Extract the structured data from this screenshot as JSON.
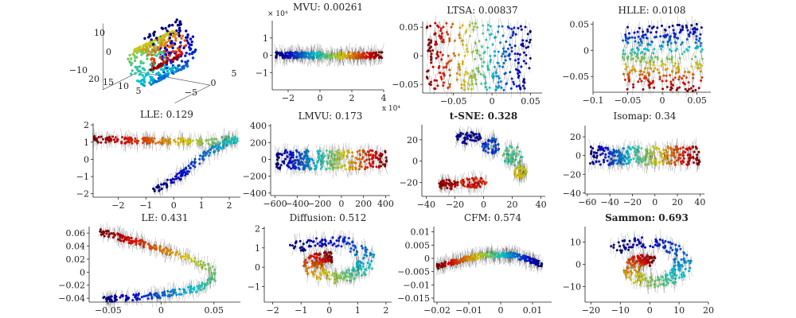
{
  "chart_data": [
    {
      "type": "scatter3d",
      "title": "",
      "panel": "original",
      "ticks": {
        "z": [
          "10",
          "0",
          "−10"
        ],
        "x": [
          "20",
          "15",
          "10",
          "5"
        ],
        "y": [
          "−5",
          "0",
          "5"
        ]
      },
      "colormap": "jet",
      "description": "Swiss roll, 3D"
    },
    {
      "type": "scatter",
      "title": "MVU: 0.00261",
      "title_bold": false,
      "xlim": [
        -30000,
        40000
      ],
      "ylim": [
        -20000,
        20000
      ],
      "xticks": [
        {
          "v": -20000,
          "label": "−2"
        },
        {
          "v": 0,
          "label": "0"
        },
        {
          "v": 20000,
          "label": "2"
        },
        {
          "v": 40000,
          "label": "4"
        }
      ],
      "yticks": [
        {
          "v": 10000,
          "label": "1"
        },
        {
          "v": 0,
          "label": "0"
        },
        {
          "v": -10000,
          "label": "−1"
        }
      ],
      "x_multiplier": "x 10⁴",
      "y_multiplier": "× 10⁴",
      "shape": "band",
      "band": {
        "x": [
          -28000,
          39000
        ],
        "y": [
          -1800,
          1800
        ],
        "color_by": "x"
      }
    },
    {
      "type": "scatter",
      "title": "LTSA: 0.00837",
      "title_bold": false,
      "xlim": [
        -0.09,
        0.065
      ],
      "ylim": [
        -0.065,
        0.06
      ],
      "xticks": [
        {
          "v": -0.05,
          "label": "−0.05"
        },
        {
          "v": 0,
          "label": "0"
        },
        {
          "v": 0.05,
          "label": "0.05"
        }
      ],
      "yticks": [
        {
          "v": 0.05,
          "label": "0.05"
        },
        {
          "v": 0,
          "label": "0"
        },
        {
          "v": -0.05,
          "label": "−0.05"
        }
      ],
      "shape": "rect",
      "rect": {
        "x": [
          -0.085,
          0.05
        ],
        "y": [
          -0.06,
          0.058
        ],
        "color_by": "x",
        "reverse": true
      }
    },
    {
      "type": "scatter",
      "title": "HLLE: 0.0108",
      "title_bold": false,
      "xlim": [
        -0.1,
        0.07
      ],
      "ylim": [
        -0.08,
        0.055
      ],
      "xticks": [
        {
          "v": -0.1,
          "label": "−0.1"
        },
        {
          "v": -0.05,
          "label": "−0.05"
        },
        {
          "v": 0,
          "label": "0"
        },
        {
          "v": 0.05,
          "label": "0.05"
        }
      ],
      "yticks": [
        {
          "v": 0.05,
          "label": "0.05"
        },
        {
          "v": 0,
          "label": "0"
        },
        {
          "v": -0.05,
          "label": "−0.05"
        }
      ],
      "shape": "rect",
      "rect": {
        "x": [
          -0.058,
          0.058
        ],
        "y": [
          -0.078,
          0.05
        ],
        "color_by": "y",
        "reverse": true
      }
    },
    {
      "type": "scatter",
      "title": "LLE: 0.129",
      "title_bold": false,
      "xlim": [
        -2.9,
        2.4
      ],
      "ylim": [
        -2.2,
        2.1
      ],
      "xticks": [
        {
          "v": -2,
          "label": "−2"
        },
        {
          "v": -1,
          "label": "−1"
        },
        {
          "v": 0,
          "label": "0"
        },
        {
          "v": 1,
          "label": "1"
        },
        {
          "v": 2,
          "label": "2"
        }
      ],
      "yticks": [
        {
          "v": 2,
          "label": "2"
        },
        {
          "v": 1,
          "label": "1"
        },
        {
          "v": 0,
          "label": "0"
        },
        {
          "v": -1,
          "label": "−1"
        },
        {
          "v": -2,
          "label": "−2"
        }
      ],
      "shape": "polyline",
      "path": [
        [
          -2.9,
          1.15
        ],
        [
          1.3,
          1.0
        ],
        [
          2.3,
          1.25
        ],
        [
          2.1,
          1.05
        ],
        [
          1.3,
          0.5
        ],
        [
          0.2,
          -1.0
        ],
        [
          -0.7,
          -1.85
        ]
      ],
      "width": 0.12
    },
    {
      "type": "scatter",
      "title": "LMVU: 0.173",
      "title_bold": false,
      "xlim": [
        -640,
        440
      ],
      "ylim": [
        -430,
        420
      ],
      "xticks": [
        {
          "v": -600,
          "label": "−600"
        },
        {
          "v": -400,
          "label": "−400"
        },
        {
          "v": -200,
          "label": "−200"
        },
        {
          "v": 0,
          "label": "0"
        },
        {
          "v": 200,
          "label": "200"
        },
        {
          "v": 400,
          "label": "400"
        }
      ],
      "yticks": [
        {
          "v": 400,
          "label": "400"
        },
        {
          "v": 200,
          "label": "200"
        },
        {
          "v": 0,
          "label": "0"
        },
        {
          "v": -200,
          "label": "−200"
        },
        {
          "v": -400,
          "label": "−400"
        }
      ],
      "shape": "band",
      "band": {
        "x": [
          -590,
          410
        ],
        "y": [
          -120,
          110
        ],
        "color_by": "x"
      }
    },
    {
      "type": "scatter",
      "title": "t-SNE: 0.328",
      "title_bold": true,
      "xlim": [
        -43,
        43
      ],
      "ylim": [
        -33,
        34
      ],
      "xticks": [
        {
          "v": -40,
          "label": "−40"
        },
        {
          "v": -20,
          "label": "−20"
        },
        {
          "v": 0,
          "label": "0"
        },
        {
          "v": 20,
          "label": "20"
        },
        {
          "v": 40,
          "label": "40"
        }
      ],
      "yticks": [
        {
          "v": 20,
          "label": "20"
        },
        {
          "v": 0,
          "label": "0"
        },
        {
          "v": -20,
          "label": "−20"
        }
      ],
      "shape": "clusters",
      "clusters": [
        {
          "cx": -10,
          "cy": 22,
          "rx": 9,
          "ry": 6,
          "t": 0.05
        },
        {
          "cx": 5,
          "cy": 14,
          "rx": 6,
          "ry": 8,
          "t": 0.2
        },
        {
          "cx": 20,
          "cy": 5,
          "rx": 7,
          "ry": 10,
          "t": 0.45
        },
        {
          "cx": 26,
          "cy": -10,
          "rx": 5,
          "ry": 6,
          "t": 0.6
        },
        {
          "cx": -25,
          "cy": -22,
          "rx": 8,
          "ry": 5,
          "t": 0.93
        },
        {
          "cx": -7,
          "cy": -20,
          "rx": 9,
          "ry": 5,
          "t": 0.85
        }
      ]
    },
    {
      "type": "scatter",
      "title": "Isomap: 0.34",
      "title_bold": false,
      "xlim": [
        -62,
        44
      ],
      "ylim": [
        -41,
        32
      ],
      "xticks": [
        {
          "v": -60,
          "label": "−60"
        },
        {
          "v": -40,
          "label": "−40"
        },
        {
          "v": -20,
          "label": "−20"
        },
        {
          "v": 0,
          "label": "0"
        },
        {
          "v": 20,
          "label": "20"
        },
        {
          "v": 40,
          "label": "40"
        }
      ],
      "yticks": [
        {
          "v": 20,
          "label": "20"
        },
        {
          "v": 0,
          "label": "0"
        },
        {
          "v": -20,
          "label": "−20"
        },
        {
          "v": -40,
          "label": "−40"
        }
      ],
      "shape": "band",
      "band": {
        "x": [
          -58,
          40
        ],
        "y": [
          -10,
          10
        ],
        "color_by": "x"
      }
    },
    {
      "type": "scatter",
      "title": "LE: 0.431",
      "title_bold": false,
      "xlim": [
        -0.068,
        0.075
      ],
      "ylim": [
        -0.046,
        0.07
      ],
      "xticks": [
        {
          "v": -0.05,
          "label": "−0.05"
        },
        {
          "v": 0,
          "label": "0"
        },
        {
          "v": 0.05,
          "label": "0.05"
        }
      ],
      "yticks": [
        {
          "v": 0.06,
          "label": "0.06"
        },
        {
          "v": 0.04,
          "label": "0.04"
        },
        {
          "v": 0.02,
          "label": "0.02"
        },
        {
          "v": 0,
          "label": "0"
        },
        {
          "v": -0.02,
          "label": "−0.02"
        },
        {
          "v": -0.04,
          "label": "−0.04"
        }
      ],
      "shape": "polyline",
      "path": [
        [
          -0.058,
          0.062
        ],
        [
          -0.02,
          0.045
        ],
        [
          0.02,
          0.025
        ],
        [
          0.048,
          0.005
        ],
        [
          0.05,
          -0.01
        ],
        [
          0.035,
          -0.025
        ],
        [
          0.0,
          -0.035
        ],
        [
          -0.055,
          -0.042
        ]
      ],
      "width": 0.003
    },
    {
      "type": "scatter",
      "title": "Diffusion: 0.512",
      "title_bold": false,
      "xlim": [
        -2.3,
        2.2
      ],
      "ylim": [
        -1.8,
        2.1
      ],
      "xticks": [
        {
          "v": -2,
          "label": "−2"
        },
        {
          "v": -1,
          "label": "−1"
        },
        {
          "v": 0,
          "label": "0"
        },
        {
          "v": 1,
          "label": "1"
        },
        {
          "v": 2,
          "label": "2"
        }
      ],
      "yticks": [
        {
          "v": 2,
          "label": "2"
        },
        {
          "v": 1,
          "label": "1"
        },
        {
          "v": 0,
          "label": "0"
        },
        {
          "v": -1,
          "label": "−1"
        }
      ],
      "shape": "spiral",
      "spiral": {
        "cx": 0.1,
        "cy": 0.2,
        "r0": 0.4,
        "r1": 1.6,
        "turns": 1.15,
        "start": 1.6,
        "width": 0.35
      }
    },
    {
      "type": "scatter",
      "title": "CFM: 0.574",
      "title_bold": false,
      "xlim": [
        -0.021,
        0.016
      ],
      "ylim": [
        -0.0165,
        0.012
      ],
      "xticks": [
        {
          "v": -0.02,
          "label": "−0.02"
        },
        {
          "v": -0.01,
          "label": "−0.01"
        },
        {
          "v": 0,
          "label": "0"
        },
        {
          "v": 0.01,
          "label": "0.01"
        }
      ],
      "yticks": [
        {
          "v": 0.01,
          "label": "0.01"
        },
        {
          "v": 0.005,
          "label": "0.005"
        },
        {
          "v": 0,
          "label": "0"
        },
        {
          "v": -0.005,
          "label": "−0.005"
        },
        {
          "v": -0.01,
          "label": "−0.01"
        },
        {
          "v": -0.015,
          "label": "−0.015"
        }
      ],
      "shape": "polyline",
      "path": [
        [
          -0.02,
          -0.003
        ],
        [
          -0.012,
          -0.0005
        ],
        [
          -0.004,
          0.0015
        ],
        [
          0.004,
          0.0012
        ],
        [
          0.009,
          -0.0005
        ],
        [
          0.013,
          -0.0025
        ]
      ],
      "width": 0.0008
    },
    {
      "type": "scatter",
      "title": "Sammon: 0.693",
      "title_bold": true,
      "xlim": [
        -22,
        20
      ],
      "ylim": [
        -17,
        17
      ],
      "xticks": [
        {
          "v": -20,
          "label": "−20"
        },
        {
          "v": -10,
          "label": "−10"
        },
        {
          "v": 0,
          "label": "0"
        },
        {
          "v": 10,
          "label": "10"
        },
        {
          "v": 20,
          "label": "20"
        }
      ],
      "yticks": [
        {
          "v": 10,
          "label": "10"
        },
        {
          "v": 0,
          "label": "0"
        },
        {
          "v": -10,
          "label": "−10"
        }
      ],
      "shape": "spiral",
      "spiral": {
        "cx": 0,
        "cy": -1,
        "r0": 3,
        "r1": 15,
        "turns": 1.2,
        "start": 1.2,
        "width": 3
      }
    }
  ]
}
